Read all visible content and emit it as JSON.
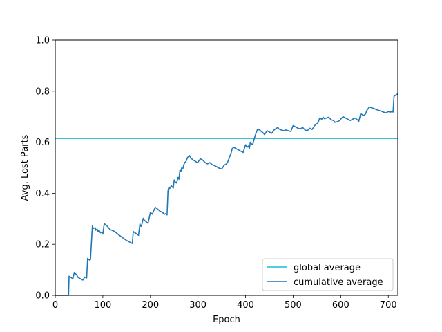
{
  "chart_data": {
    "type": "line",
    "title": "",
    "xlabel": "Epoch",
    "ylabel": "Avg. Lost Parts",
    "xlim": [
      0,
      720
    ],
    "ylim": [
      0.0,
      1.0
    ],
    "x_ticks": [
      0,
      100,
      200,
      300,
      400,
      500,
      600,
      700
    ],
    "y_ticks": [
      0.0,
      0.2,
      0.4,
      0.6,
      0.8,
      1.0
    ],
    "y_tick_labels": [
      "0.0",
      "0.2",
      "0.4",
      "0.6",
      "0.8",
      "1.0"
    ],
    "grid": false,
    "legend_position": "lower-right",
    "series": [
      {
        "name": "global average",
        "color": "#17becf",
        "x": [
          0,
          720
        ],
        "y": [
          0.615,
          0.615
        ]
      },
      {
        "name": "cumulative average",
        "color": "#1f77b4",
        "x": [
          0,
          28,
          29,
          37,
          40,
          45,
          48,
          58,
          62,
          66,
          68,
          72,
          74,
          78,
          80,
          84,
          85,
          88,
          90,
          92,
          95,
          98,
          100,
          103,
          106,
          110,
          112,
          115,
          125,
          130,
          140,
          150,
          162,
          164,
          170,
          175,
          178,
          180,
          182,
          185,
          187,
          190,
          195,
          200,
          204,
          210,
          215,
          220,
          225,
          230,
          232,
          235,
          237,
          239,
          240,
          242,
          244,
          246,
          248,
          250,
          252,
          255,
          258,
          260,
          262,
          264,
          266,
          268,
          270,
          272,
          275,
          278,
          282,
          285,
          290,
          295,
          298,
          300,
          305,
          310,
          315,
          320,
          325,
          330,
          335,
          340,
          345,
          350,
          355,
          360,
          362,
          365,
          368,
          370,
          372,
          375,
          380,
          385,
          390,
          395,
          400,
          403,
          406,
          408,
          410,
          412,
          415,
          420,
          425,
          430,
          433,
          436,
          440,
          445,
          450,
          455,
          460,
          465,
          468,
          470,
          475,
          480,
          485,
          490,
          495,
          500,
          505,
          510,
          515,
          520,
          525,
          530,
          535,
          540,
          545,
          548,
          552,
          556,
          560,
          563,
          566,
          570,
          575,
          580,
          585,
          588,
          592,
          598,
          602,
          605,
          610,
          615,
          620,
          625,
          630,
          635,
          638,
          642,
          645,
          648,
          652,
          655,
          660,
          665,
          670,
          675,
          680,
          685,
          690,
          695,
          700,
          705,
          708,
          710,
          712,
          716,
          720
        ],
        "y": [
          0.0,
          0.0,
          0.075,
          0.065,
          0.09,
          0.08,
          0.07,
          0.06,
          0.072,
          0.068,
          0.145,
          0.138,
          0.14,
          0.272,
          0.262,
          0.265,
          0.255,
          0.26,
          0.25,
          0.255,
          0.245,
          0.248,
          0.24,
          0.282,
          0.275,
          0.27,
          0.265,
          0.258,
          0.25,
          0.242,
          0.228,
          0.215,
          0.203,
          0.25,
          0.242,
          0.235,
          0.28,
          0.27,
          0.278,
          0.302,
          0.295,
          0.29,
          0.282,
          0.325,
          0.318,
          0.345,
          0.338,
          0.33,
          0.325,
          0.318,
          0.32,
          0.315,
          0.41,
          0.425,
          0.418,
          0.422,
          0.43,
          0.425,
          0.42,
          0.452,
          0.445,
          0.44,
          0.462,
          0.455,
          0.49,
          0.485,
          0.5,
          0.495,
          0.51,
          0.52,
          0.525,
          0.54,
          0.548,
          0.538,
          0.53,
          0.525,
          0.52,
          0.522,
          0.535,
          0.53,
          0.52,
          0.515,
          0.52,
          0.512,
          0.508,
          0.503,
          0.498,
          0.495,
          0.51,
          0.515,
          0.52,
          0.535,
          0.55,
          0.56,
          0.575,
          0.58,
          0.575,
          0.57,
          0.565,
          0.56,
          0.59,
          0.58,
          0.585,
          0.575,
          0.6,
          0.595,
          0.59,
          0.625,
          0.65,
          0.648,
          0.642,
          0.638,
          0.63,
          0.645,
          0.64,
          0.635,
          0.648,
          0.655,
          0.658,
          0.652,
          0.648,
          0.645,
          0.648,
          0.645,
          0.642,
          0.665,
          0.66,
          0.655,
          0.652,
          0.658,
          0.648,
          0.645,
          0.655,
          0.65,
          0.665,
          0.67,
          0.675,
          0.695,
          0.69,
          0.698,
          0.692,
          0.695,
          0.698,
          0.688,
          0.685,
          0.678,
          0.68,
          0.685,
          0.695,
          0.7,
          0.695,
          0.69,
          0.685,
          0.69,
          0.695,
          0.688,
          0.682,
          0.712,
          0.708,
          0.705,
          0.71,
          0.725,
          0.738,
          0.735,
          0.732,
          0.728,
          0.725,
          0.722,
          0.718,
          0.715,
          0.72,
          0.718,
          0.722,
          0.718,
          0.78,
          0.785,
          0.79
        ]
      }
    ]
  }
}
